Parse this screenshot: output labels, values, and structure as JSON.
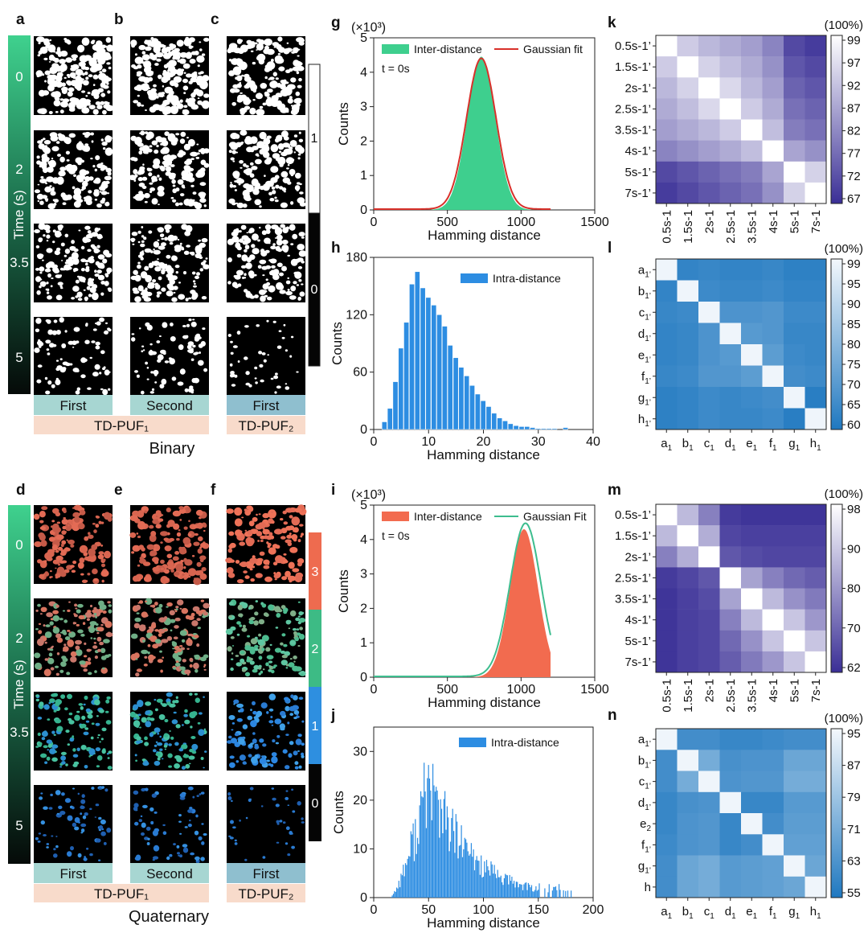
{
  "panel_letters": [
    "a",
    "b",
    "c",
    "d",
    "e",
    "f",
    "g",
    "h",
    "i",
    "j",
    "k",
    "l",
    "m",
    "n"
  ],
  "binary": {
    "time_label": "Time (s)",
    "time_ticks": [
      "0",
      "2",
      "3.5",
      "5"
    ],
    "col_first": "First",
    "col_second": "Second",
    "col_first2": "First",
    "puf1": "TD-PUF₁",
    "puf2": "TD-PUF₂",
    "caption": "Binary",
    "legend_values": [
      "1",
      "0"
    ]
  },
  "quaternary": {
    "time_label": "Time (s)",
    "time_ticks": [
      "0",
      "2",
      "3.5",
      "5"
    ],
    "col_first": "First",
    "col_second": "Second",
    "col_first2": "First",
    "puf1": "TD-PUF₁",
    "puf2": "TD-PUF₂",
    "caption": "Quaternary",
    "legend_values": [
      "3",
      "2",
      "1",
      "0"
    ],
    "legend_colors": [
      "#ee6b4f",
      "#3dbb85",
      "#2e8fe0",
      "#050505"
    ]
  },
  "colors": {
    "inter_binary": "#3ecf8e",
    "fit_binary": "#d8302a",
    "inter_quaternary": "#f26b4f",
    "fit_quaternary": "#3dbd8e",
    "intra": "#2d8de2",
    "purple_low": "#3a2f96",
    "blue_low": "#1f78c0"
  },
  "chart_data": [
    {
      "id": "g",
      "type": "area",
      "multiplier_label": "(×10³)",
      "xlabel": "Hamming distance",
      "ylabel": "Counts",
      "xlim": [
        0,
        1500
      ],
      "ylim": [
        0,
        5
      ],
      "xticks": [
        "0",
        "500",
        "1000",
        "1500"
      ],
      "yticks": [
        "0",
        "1",
        "2",
        "3",
        "4",
        "5"
      ],
      "annotation": "t = 0s",
      "series": [
        {
          "name": "Inter-distance",
          "kind": "hist",
          "peak": 4.45,
          "mean": 730,
          "sd": 95
        },
        {
          "name": "Gaussian fit",
          "kind": "line",
          "peak": 4.38,
          "mean": 730,
          "sd": 100
        }
      ]
    },
    {
      "id": "h",
      "type": "bar",
      "xlabel": "Hamming distance",
      "ylabel": "Counts",
      "xlim": [
        0,
        40
      ],
      "ylim": [
        0,
        180
      ],
      "xticks": [
        "0",
        "10",
        "20",
        "30",
        "40"
      ],
      "yticks": [
        "0",
        "60",
        "120",
        "180"
      ],
      "series": [
        {
          "name": "Intra-distance",
          "x": [
            2,
            3,
            4,
            5,
            6,
            7,
            8,
            9,
            10,
            11,
            12,
            13,
            14,
            15,
            16,
            17,
            18,
            19,
            20,
            21,
            22,
            23,
            24,
            25,
            26,
            27,
            28,
            29,
            30,
            31,
            32,
            33,
            35
          ],
          "values": [
            8,
            22,
            50,
            85,
            112,
            152,
            165,
            148,
            138,
            130,
            120,
            108,
            88,
            75,
            65,
            56,
            46,
            37,
            30,
            24,
            17,
            12,
            9,
            6,
            4,
            3,
            3,
            2,
            1,
            1,
            1,
            1,
            2
          ]
        }
      ]
    },
    {
      "id": "i",
      "type": "area",
      "multiplier_label": "(×10³)",
      "xlabel": "Hamming distance",
      "ylabel": "Counts",
      "xlim": [
        0,
        1500
      ],
      "ylim": [
        0,
        5
      ],
      "xticks": [
        "0",
        "500",
        "1000",
        "1500"
      ],
      "yticks": [
        "0",
        "1",
        "2",
        "3",
        "4",
        "5"
      ],
      "annotation": "t = 0s",
      "series": [
        {
          "name": "Inter-distance",
          "kind": "hist",
          "peak": 4.3,
          "mean": 1020,
          "sd": 95
        },
        {
          "name": "Gaussian Fit",
          "kind": "line",
          "peak": 4.45,
          "mean": 1030,
          "sd": 105
        }
      ]
    },
    {
      "id": "j",
      "type": "bar",
      "xlabel": "Hamming distance",
      "ylabel": "Counts",
      "xlim": [
        0,
        200
      ],
      "ylim": [
        0,
        35
      ],
      "xticks": [
        "0",
        "50",
        "100",
        "150",
        "200"
      ],
      "yticks": [
        "0",
        "10",
        "20",
        "30"
      ],
      "series": [
        {
          "name": "Intra-distance",
          "start": 15,
          "end": 185,
          "mode": 50,
          "peak": 33
        }
      ]
    },
    {
      "id": "k",
      "type": "heatmap",
      "unit_label": "(100%)",
      "rows": [
        "0.5s-1’",
        "1.5s-1’",
        "2s-1’",
        "2.5s-1’",
        "3.5s-1’",
        "4s-1’",
        "5s-1’",
        "7s-1’"
      ],
      "cols": [
        "0.5s-1",
        "1.5s-1",
        "2s-1",
        "2.5s-1",
        "3.5s-1",
        "4s-1",
        "5s-1",
        "7s-1"
      ],
      "colorbar_ticks": [
        "99",
        "97",
        "92",
        "87",
        "82",
        "77",
        "72",
        "67"
      ],
      "vmin": 67,
      "vmax": 99,
      "values": [
        [
          99,
          91,
          88,
          86,
          84,
          80,
          71,
          69
        ],
        [
          91,
          99,
          92,
          89,
          86,
          82,
          73,
          71
        ],
        [
          88,
          92,
          99,
          93,
          88,
          84,
          75,
          73
        ],
        [
          86,
          89,
          93,
          99,
          91,
          86,
          77,
          75
        ],
        [
          84,
          86,
          88,
          91,
          99,
          89,
          79,
          77
        ],
        [
          80,
          82,
          84,
          86,
          89,
          99,
          85,
          82
        ],
        [
          71,
          73,
          75,
          77,
          79,
          85,
          99,
          92
        ],
        [
          69,
          71,
          73,
          75,
          77,
          82,
          92,
          99
        ]
      ]
    },
    {
      "id": "l",
      "type": "heatmap",
      "unit_label": "(100%)",
      "rows": [
        "a",
        "b",
        "c",
        "d",
        "e",
        "f",
        "g",
        "h"
      ],
      "row_subs": [
        "1’",
        "1’",
        "1’",
        "1’",
        "1’",
        "1’",
        "1’",
        "1’"
      ],
      "cols": [
        "a",
        "b",
        "c",
        "d",
        "e",
        "f",
        "g",
        "h"
      ],
      "col_subs": [
        "1",
        "1",
        "1",
        "1",
        "1",
        "1",
        "1",
        "1"
      ],
      "colorbar_ticks": [
        "99",
        "95",
        "90",
        "85",
        "80",
        "75",
        "70",
        "65",
        "60"
      ],
      "vmin": 58,
      "vmax": 100,
      "values": [
        [
          99,
          62,
          63,
          62,
          62,
          63,
          61,
          61
        ],
        [
          62,
          99,
          64,
          63,
          63,
          64,
          62,
          62
        ],
        [
          63,
          64,
          99,
          67,
          67,
          68,
          64,
          64
        ],
        [
          62,
          63,
          67,
          99,
          69,
          68,
          63,
          63
        ],
        [
          62,
          63,
          67,
          69,
          99,
          70,
          64,
          63
        ],
        [
          63,
          64,
          68,
          68,
          70,
          99,
          65,
          64
        ],
        [
          61,
          62,
          64,
          63,
          64,
          65,
          99,
          60
        ],
        [
          61,
          62,
          64,
          63,
          63,
          64,
          60,
          99
        ]
      ]
    },
    {
      "id": "m",
      "type": "heatmap",
      "unit_label": "(100%)",
      "rows": [
        "0.5s-1’",
        "1.5s-1’",
        "2s-1’",
        "2.5s-1’",
        "3.5s-1’",
        "4s-1’",
        "5s-1’",
        "7s-1’"
      ],
      "cols": [
        "0.5s-1",
        "1.5s-1",
        "2s-1",
        "2.5s-1",
        "3.5s-1",
        "4s-1",
        "5s-1",
        "7s-1"
      ],
      "colorbar_ticks": [
        "98",
        "90",
        "80",
        "70",
        "62"
      ],
      "vmin": 62,
      "vmax": 98,
      "values": [
        [
          98,
          86,
          76,
          64,
          63,
          63,
          63,
          63
        ],
        [
          86,
          98,
          84,
          66,
          65,
          65,
          65,
          65
        ],
        [
          76,
          84,
          98,
          69,
          67,
          66,
          66,
          66
        ],
        [
          64,
          66,
          69,
          98,
          82,
          76,
          72,
          70
        ],
        [
          63,
          65,
          67,
          82,
          98,
          86,
          79,
          75
        ],
        [
          63,
          65,
          66,
          76,
          86,
          98,
          88,
          80
        ],
        [
          63,
          65,
          66,
          72,
          79,
          88,
          98,
          88
        ],
        [
          63,
          65,
          66,
          70,
          75,
          80,
          88,
          98
        ]
      ]
    },
    {
      "id": "n",
      "type": "heatmap",
      "unit_label": "(100%)",
      "rows": [
        "a",
        "b",
        "c",
        "d",
        "e",
        "f",
        "g",
        "h"
      ],
      "row_subs": [
        "1’",
        "1’",
        "1’",
        "1’",
        "2",
        "1’",
        "1’",
        ""
      ],
      "cols": [
        "a",
        "b",
        "c",
        "d",
        "e",
        "f",
        "g",
        "h"
      ],
      "col_subs": [
        "1",
        "1",
        "1",
        "1",
        "1",
        "1",
        "1",
        "1"
      ],
      "colorbar_ticks": [
        "95",
        "87",
        "79",
        "71",
        "63",
        "55"
      ],
      "vmin": 55,
      "vmax": 97,
      "values": [
        [
          96,
          62,
          62,
          60,
          60,
          61,
          62,
          62
        ],
        [
          62,
          96,
          72,
          63,
          64,
          64,
          70,
          70
        ],
        [
          62,
          72,
          96,
          64,
          65,
          65,
          72,
          72
        ],
        [
          60,
          63,
          64,
          96,
          60,
          60,
          66,
          66
        ],
        [
          60,
          64,
          65,
          60,
          96,
          62,
          67,
          67
        ],
        [
          61,
          64,
          65,
          60,
          62,
          96,
          68,
          68
        ],
        [
          62,
          70,
          72,
          66,
          67,
          68,
          96,
          70
        ],
        [
          62,
          70,
          72,
          66,
          67,
          68,
          70,
          96
        ]
      ]
    }
  ]
}
